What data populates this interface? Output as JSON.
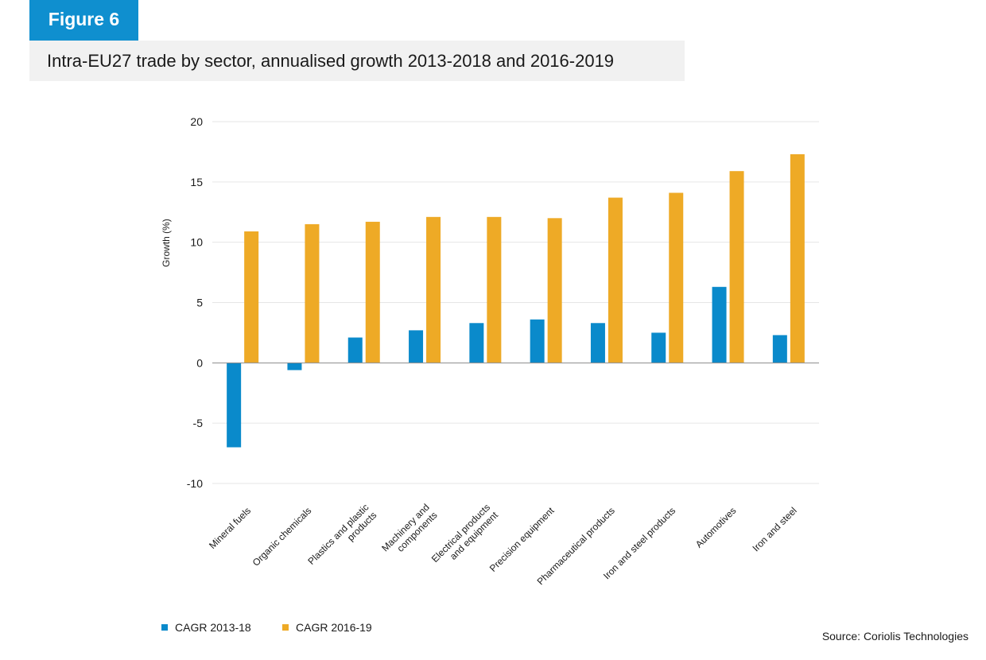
{
  "header": {
    "figure_label": "Figure 6",
    "title": "Intra-EU27 trade by sector, annualised growth 2013-2018 and 2016-2019"
  },
  "source": "Source: Coriolis Technologies",
  "colors": {
    "series_1": "#0a8acb",
    "series_2": "#eeaa26",
    "grid": "#e6e6e6",
    "figure_tag": "#0f8fcf",
    "title_background": "#f1f1f1"
  },
  "chart_data": {
    "type": "bar",
    "title": "Intra-EU27 trade by sector, annualised growth 2013-2018 and 2016-2019",
    "xlabel": "",
    "ylabel": "Growth (%)",
    "ylim": [
      -10,
      20
    ],
    "yticks": [
      20,
      15,
      10,
      5,
      0,
      -5,
      -10
    ],
    "grid": true,
    "legend_position": "bottom-left",
    "categories": [
      "Mineral fuels",
      "Organic chemicals",
      "Plastics and plastic products",
      "Machinery and components",
      "Electrical products and equipment",
      "Precision equipment",
      "Pharmaceutical products",
      "Iron and steel products",
      "Automotives",
      "Iron and steel"
    ],
    "category_label_lines": [
      [
        "Mineral fuels"
      ],
      [
        "Organic chemicals"
      ],
      [
        "Plastics and plastic",
        "products"
      ],
      [
        "Machinery and",
        "components"
      ],
      [
        "Electrical products",
        "and equipment"
      ],
      [
        "Precision equipment"
      ],
      [
        "Pharmaceutical products"
      ],
      [
        "Iron and steel products"
      ],
      [
        "Automotives"
      ],
      [
        "Iron and steel"
      ]
    ],
    "series": [
      {
        "name": "CAGR 2013-18",
        "color": "#0a8acb",
        "values": [
          -7.0,
          -0.6,
          2.1,
          2.7,
          3.3,
          3.6,
          3.3,
          2.5,
          6.3,
          2.3
        ]
      },
      {
        "name": "CAGR 2016-19",
        "color": "#eeaa26",
        "values": [
          10.9,
          11.5,
          11.7,
          12.1,
          12.1,
          12.0,
          13.7,
          14.1,
          15.9,
          17.3
        ]
      }
    ]
  }
}
